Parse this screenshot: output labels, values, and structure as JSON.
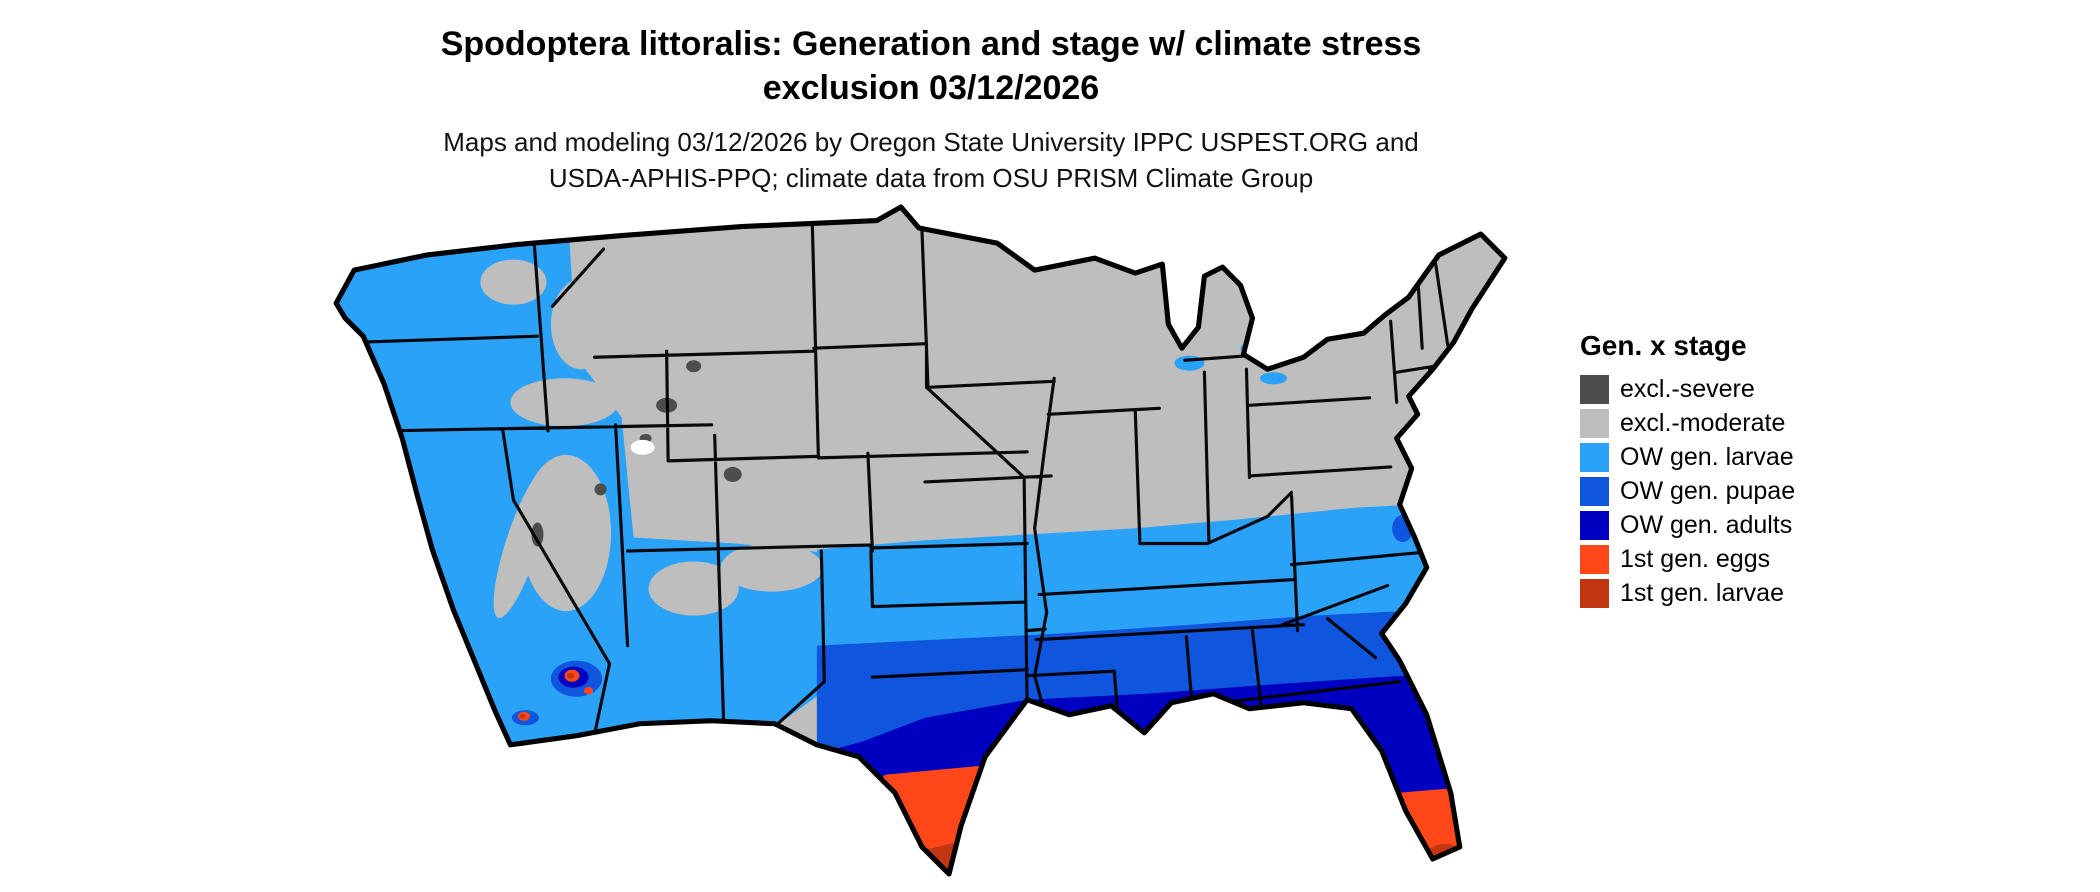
{
  "title": {
    "line1": "Spodoptera littoralis: Generation and stage w/ climate stress",
    "line2": "exclusion 03/12/2026"
  },
  "subtitle": {
    "line1": "Maps and modeling 03/12/2026 by Oregon State University IPPC USPEST.ORG and",
    "line2": "USDA-APHIS-PPQ; climate data from OSU PRISM Climate Group"
  },
  "legend": {
    "heading": "Gen. x stage",
    "items": [
      {
        "label": "excl.-severe",
        "color": "#4d4d4d"
      },
      {
        "label": "excl.-moderate",
        "color": "#bebebe"
      },
      {
        "label": "OW gen. larvae",
        "color": "#2aa2f7"
      },
      {
        "label": "OW gen. pupae",
        "color": "#0f55dd"
      },
      {
        "label": "OW gen. adults",
        "color": "#0000c0"
      },
      {
        "label": "1st gen. eggs",
        "color": "#ff4719"
      },
      {
        "label": "1st gen. larvae",
        "color": "#c23712"
      }
    ]
  },
  "map": {
    "name": "Conterminous United States choropleth of generation and stage",
    "outline_color": "#000000",
    "background": "#ffffff"
  }
}
